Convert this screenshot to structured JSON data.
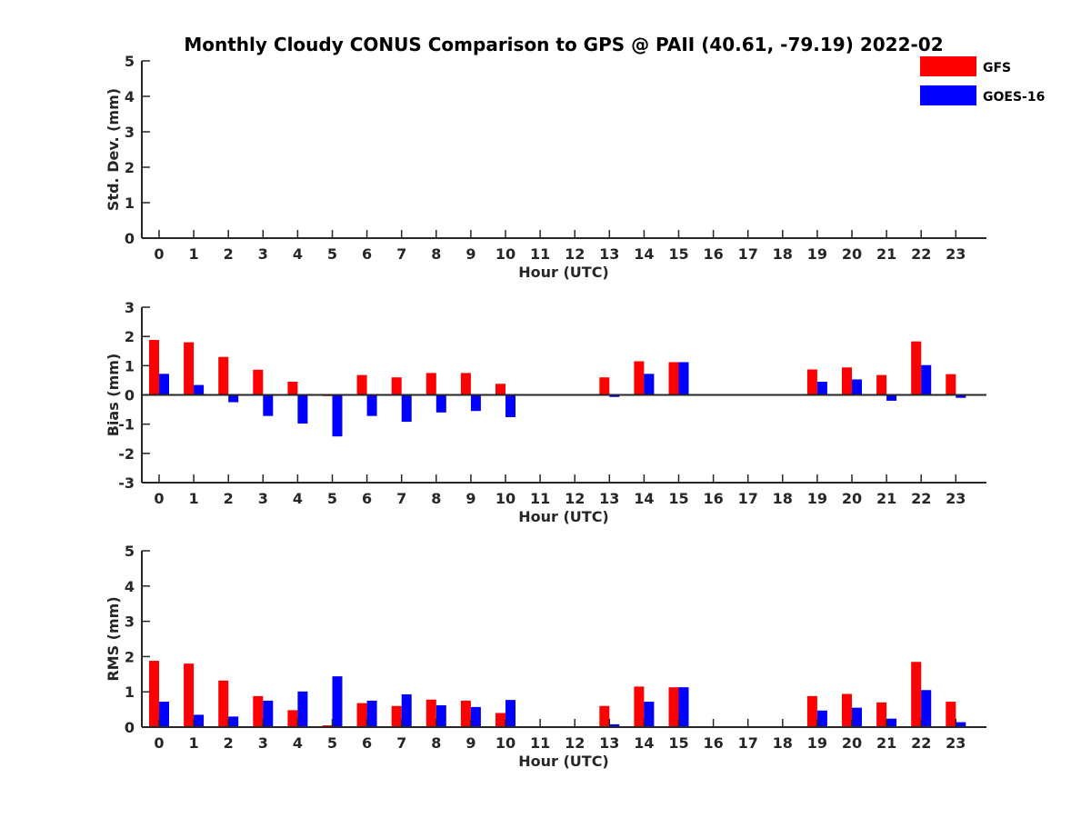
{
  "title": "Monthly Cloudy CONUS Comparison to GPS @ PAII (40.61, -79.19) 2022-02",
  "legend": [
    {
      "name": "GFS",
      "color": "#ff0000"
    },
    {
      "name": "GOES-16",
      "color": "#0000ff"
    }
  ],
  "chart_data": [
    {
      "type": "bar",
      "ylabel": "Std. Dev. (mm)",
      "xlabel": "Hour (UTC)",
      "ylim": [
        0,
        5
      ],
      "yticks": [
        0,
        1,
        2,
        3,
        4,
        5
      ],
      "categories": [
        "0",
        "1",
        "2",
        "3",
        "4",
        "5",
        "6",
        "7",
        "8",
        "9",
        "10",
        "11",
        "12",
        "13",
        "14",
        "15",
        "16",
        "17",
        "18",
        "19",
        "20",
        "21",
        "22",
        "23"
      ],
      "series": [
        {
          "name": "GFS",
          "color": "#ff0000",
          "values": [
            null,
            null,
            null,
            null,
            null,
            null,
            null,
            null,
            null,
            null,
            null,
            null,
            null,
            null,
            null,
            null,
            null,
            null,
            null,
            null,
            null,
            null,
            null,
            null
          ]
        },
        {
          "name": "GOES-16",
          "color": "#0000ff",
          "values": [
            null,
            null,
            null,
            null,
            null,
            null,
            null,
            null,
            null,
            null,
            null,
            null,
            null,
            null,
            null,
            null,
            null,
            null,
            null,
            null,
            null,
            null,
            null,
            null
          ]
        }
      ]
    },
    {
      "type": "bar",
      "ylabel": "Bias (mm)",
      "xlabel": "Hour (UTC)",
      "ylim": [
        -3,
        3
      ],
      "yticks": [
        -3,
        -2,
        -1,
        0,
        1,
        2,
        3
      ],
      "zero_line": true,
      "categories": [
        "0",
        "1",
        "2",
        "3",
        "4",
        "5",
        "6",
        "7",
        "8",
        "9",
        "10",
        "11",
        "12",
        "13",
        "14",
        "15",
        "16",
        "17",
        "18",
        "19",
        "20",
        "21",
        "22",
        "23"
      ],
      "series": [
        {
          "name": "GFS",
          "color": "#ff0000",
          "values": [
            1.88,
            1.8,
            1.3,
            0.86,
            0.45,
            -0.04,
            0.68,
            0.6,
            0.75,
            0.75,
            0.38,
            null,
            null,
            0.6,
            1.15,
            1.12,
            null,
            null,
            null,
            0.87,
            0.94,
            0.68,
            1.83,
            0.71
          ]
        },
        {
          "name": "GOES-16",
          "color": "#0000ff",
          "values": [
            0.72,
            0.34,
            -0.25,
            -0.72,
            -0.98,
            -1.42,
            -0.72,
            -0.92,
            -0.6,
            -0.55,
            -0.76,
            null,
            null,
            -0.07,
            0.72,
            1.12,
            null,
            null,
            null,
            0.45,
            0.53,
            -0.2,
            1.02,
            -0.1
          ]
        }
      ]
    },
    {
      "type": "bar",
      "ylabel": "RMS (mm)",
      "xlabel": "Hour (UTC)",
      "ylim": [
        0,
        5
      ],
      "yticks": [
        0,
        1,
        2,
        3,
        4,
        5
      ],
      "categories": [
        "0",
        "1",
        "2",
        "3",
        "4",
        "5",
        "6",
        "7",
        "8",
        "9",
        "10",
        "11",
        "12",
        "13",
        "14",
        "15",
        "16",
        "17",
        "18",
        "19",
        "20",
        "21",
        "22",
        "23"
      ],
      "series": [
        {
          "name": "GFS",
          "color": "#ff0000",
          "values": [
            1.88,
            1.8,
            1.32,
            0.88,
            0.48,
            0.05,
            0.68,
            0.6,
            0.78,
            0.75,
            0.4,
            null,
            null,
            0.6,
            1.15,
            1.13,
            null,
            null,
            null,
            0.88,
            0.94,
            0.7,
            1.85,
            0.72
          ]
        },
        {
          "name": "GOES-16",
          "color": "#0000ff",
          "values": [
            0.72,
            0.35,
            0.3,
            0.75,
            1.01,
            1.44,
            0.75,
            0.93,
            0.62,
            0.57,
            0.77,
            null,
            null,
            0.08,
            0.72,
            1.13,
            null,
            null,
            null,
            0.47,
            0.55,
            0.24,
            1.05,
            0.14
          ]
        }
      ]
    }
  ]
}
